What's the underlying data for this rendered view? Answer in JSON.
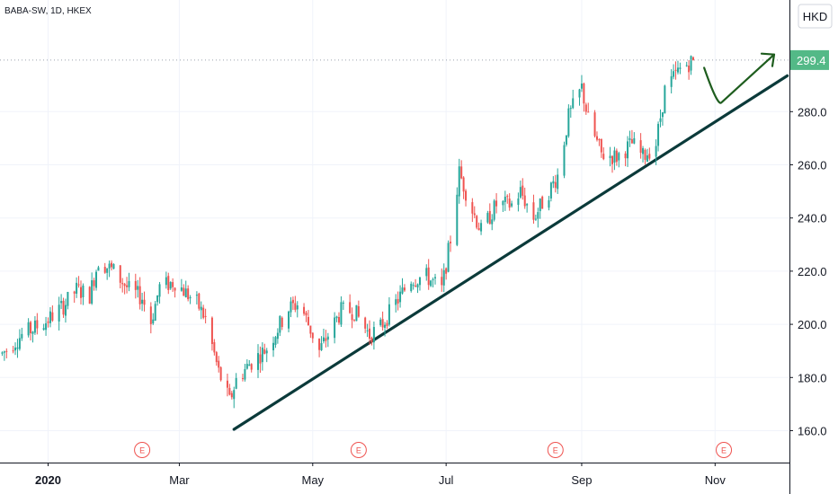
{
  "header": {
    "ticker_label": "BABA-SW, 1D, HKEX"
  },
  "currency": "HKD",
  "price_tag": {
    "value": "299.4",
    "color": "#53b987"
  },
  "colors": {
    "up": "#26a69a",
    "down": "#ef5350",
    "trendline": "#0b3a3a",
    "projection": "#1e5d1e",
    "earnings": "#ef5350",
    "axis": "#131722",
    "grid": "#f0f3fa"
  },
  "earnings_marker_label": "E",
  "chart_data": {
    "type": "candlestick",
    "title": "",
    "ylim": [
      148,
      322
    ],
    "xlim": [
      "2019-12-10",
      "2020-12-05"
    ],
    "yticks": [
      "160.0",
      "180.0",
      "200.0",
      "220.0",
      "240.0",
      "260.0",
      "280.0"
    ],
    "xticks": [
      {
        "date": "2020-01-01",
        "label": "2020",
        "bold": true
      },
      {
        "date": "2020-03-01",
        "label": "Mar",
        "bold": false
      },
      {
        "date": "2020-05-01",
        "label": "May",
        "bold": false
      },
      {
        "date": "2020-07-01",
        "label": "Jul",
        "bold": false
      },
      {
        "date": "2020-09-01",
        "label": "Sep",
        "bold": false
      },
      {
        "date": "2020-11-01",
        "label": "Nov",
        "bold": false
      }
    ],
    "last_price": 299.4,
    "earnings_dates": [
      "2020-02-13",
      "2020-05-22",
      "2020-08-20",
      "2020-11-05"
    ],
    "trendline": {
      "start": [
        "2020-03-26",
        160.5
      ],
      "end": [
        "2020-12-04",
        293.5
      ]
    },
    "projection_arrow": [
      [
        "2020-10-27",
        296.5
      ],
      [
        "2020-11-04",
        283.5
      ],
      [
        "2020-11-28",
        301.5
      ]
    ],
    "anchors": [
      [
        "2019-12-11",
        189
      ],
      [
        "2019-12-20",
        196
      ],
      [
        "2019-12-31",
        201
      ],
      [
        "2020-01-08",
        207
      ],
      [
        "2020-01-14",
        213
      ],
      [
        "2020-01-20",
        211
      ],
      [
        "2020-01-24",
        224
      ],
      [
        "2020-01-31",
        220
      ],
      [
        "2020-02-07",
        213
      ],
      [
        "2020-02-13",
        210
      ],
      [
        "2020-02-17",
        201
      ],
      [
        "2020-02-21",
        214
      ],
      [
        "2020-02-28",
        216
      ],
      [
        "2020-03-05",
        211
      ],
      [
        "2020-03-09",
        208
      ],
      [
        "2020-03-13",
        202
      ],
      [
        "2020-03-19",
        182
      ],
      [
        "2020-03-24",
        171
      ],
      [
        "2020-03-27",
        179
      ],
      [
        "2020-04-02",
        185
      ],
      [
        "2020-04-10",
        191
      ],
      [
        "2020-04-20",
        206
      ],
      [
        "2020-04-25",
        208
      ],
      [
        "2020-05-04",
        190
      ],
      [
        "2020-05-14",
        205
      ],
      [
        "2020-05-20",
        205
      ],
      [
        "2020-05-27",
        196
      ],
      [
        "2020-06-01",
        199
      ],
      [
        "2020-06-08",
        208
      ],
      [
        "2020-06-15",
        217
      ],
      [
        "2020-06-22",
        218
      ],
      [
        "2020-06-29",
        213
      ],
      [
        "2020-07-03",
        232
      ],
      [
        "2020-07-07",
        257
      ],
      [
        "2020-07-13",
        243
      ],
      [
        "2020-07-17",
        235
      ],
      [
        "2020-07-24",
        245
      ],
      [
        "2020-07-31",
        245
      ],
      [
        "2020-08-04",
        250
      ],
      [
        "2020-08-10",
        240
      ],
      [
        "2020-08-17",
        250
      ],
      [
        "2020-08-21",
        256
      ],
      [
        "2020-08-26",
        278
      ],
      [
        "2020-09-01",
        289
      ],
      [
        "2020-09-04",
        277
      ],
      [
        "2020-09-10",
        264
      ],
      [
        "2020-09-17",
        263
      ],
      [
        "2020-09-24",
        268
      ],
      [
        "2020-09-29",
        263
      ],
      [
        "2020-10-05",
        268
      ],
      [
        "2020-10-09",
        288
      ],
      [
        "2020-10-16",
        296
      ],
      [
        "2020-10-22",
        299.4
      ]
    ]
  }
}
